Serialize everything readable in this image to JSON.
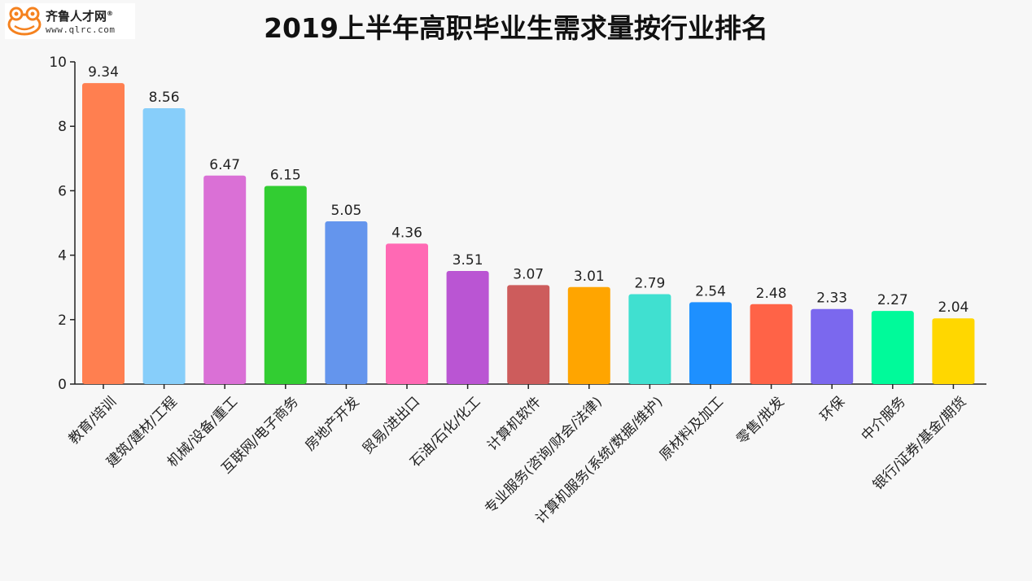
{
  "logo": {
    "brand": "齐鲁人才网",
    "reg": "®",
    "url": "www.qlrc.com"
  },
  "colors": {
    "bars": [
      "#FF7F50",
      "#87CEFA",
      "#DA70D6",
      "#32CD32",
      "#6495ED",
      "#FF69B4",
      "#BA55D3",
      "#CD5C5C",
      "#FFA500",
      "#40E0D0",
      "#1E90FF",
      "#FF6347",
      "#7B68EE",
      "#00FA9A",
      "#FFD700"
    ]
  },
  "chart_data": {
    "type": "bar",
    "title": "2019上半年高职毕业生需求量按行业排名",
    "categories": [
      "教育/培训",
      "建筑/建材/工程",
      "机械/设备/重工",
      "互联网/电子商务",
      "房地产开发",
      "贸易/进出口",
      "石油/石化/化工",
      "计算机软件",
      "专业服务(咨询/财会/法律)",
      "计算机服务(系统/数据/维护)",
      "原材料及加工",
      "零售/批发",
      "环保",
      "中介服务",
      "银行/证券/基金/期货"
    ],
    "values": [
      9.34,
      8.56,
      6.47,
      6.15,
      5.05,
      4.36,
      3.51,
      3.07,
      3.01,
      2.79,
      2.54,
      2.48,
      2.33,
      2.27,
      2.04
    ],
    "value_labels": [
      "9.34",
      "8.56",
      "6.47",
      "6.15",
      "5.05",
      "4.36",
      "3.51",
      "3.07",
      "3.01",
      "2.79",
      "2.54",
      "2.48",
      "2.33",
      "2.27",
      "2.04"
    ],
    "ylim": [
      0,
      10
    ],
    "yticks": [
      "0",
      "2",
      "4",
      "6",
      "8",
      "10"
    ],
    "xlabel": "",
    "ylabel": "",
    "grid": false,
    "legend": "none"
  }
}
